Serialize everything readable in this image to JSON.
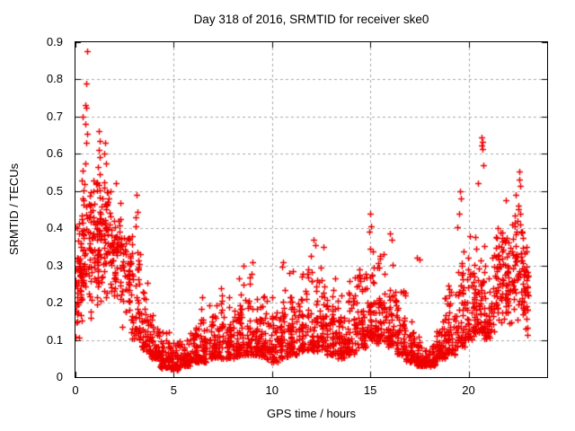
{
  "page": {
    "background": "#ffffff",
    "text_color": "#000000"
  },
  "chart_data": {
    "type": "scatter",
    "title": "Day 318 of 2016, SRMTID for receiver ske0",
    "xlabel": "GPS time / hours",
    "ylabel": "SRMTID / TECUs",
    "xlim": [
      0,
      24
    ],
    "ylim": [
      0,
      0.9
    ],
    "xticks": [
      0,
      5,
      10,
      15,
      20
    ],
    "yticks": [
      0,
      0.1,
      0.2,
      0.3,
      0.4,
      0.5,
      0.6,
      0.7,
      0.8,
      0.9
    ],
    "xtick_labels": [
      "0",
      "5",
      "10",
      "15",
      "20"
    ],
    "ytick_labels": [
      "0",
      "0.1",
      "0.2",
      "0.3",
      "0.4",
      "0.5",
      "0.6",
      "0.7",
      "0.8",
      "0.9"
    ],
    "grid": true,
    "grid_style": "dotted",
    "grid_color": "#a8a8a8",
    "frame_color": "#000000",
    "legend": "none",
    "marker": "plus",
    "marker_color": "#ee0000",
    "data_time_range_hours": [
      0,
      23.0
    ],
    "seed": 318,
    "bin_fields": [
      "t_start",
      "t_end",
      "y_min",
      "y_max",
      "count",
      "distribution"
    ],
    "density_bins": [
      [
        0.0,
        0.3,
        0.08,
        0.45,
        60,
        "mid"
      ],
      [
        0.3,
        0.8,
        0.15,
        0.6,
        65,
        "mid"
      ],
      [
        0.8,
        1.3,
        0.18,
        0.57,
        65,
        "mid"
      ],
      [
        1.3,
        1.8,
        0.17,
        0.55,
        60,
        "mid"
      ],
      [
        1.8,
        2.3,
        0.18,
        0.5,
        55,
        "mid"
      ],
      [
        2.3,
        2.8,
        0.13,
        0.42,
        50,
        "mid"
      ],
      [
        2.8,
        3.3,
        0.1,
        0.45,
        48,
        "low"
      ],
      [
        3.3,
        3.8,
        0.07,
        0.3,
        48,
        "low"
      ],
      [
        3.8,
        4.3,
        0.05,
        0.22,
        48,
        "low"
      ],
      [
        4.3,
        4.8,
        0.025,
        0.15,
        48,
        "low"
      ],
      [
        4.8,
        5.3,
        0.02,
        0.11,
        48,
        "low"
      ],
      [
        5.3,
        5.8,
        0.03,
        0.13,
        48,
        "low"
      ],
      [
        5.8,
        6.3,
        0.04,
        0.17,
        48,
        "low"
      ],
      [
        6.3,
        6.8,
        0.04,
        0.21,
        48,
        "low"
      ],
      [
        6.8,
        7.3,
        0.05,
        0.2,
        48,
        "low"
      ],
      [
        7.3,
        7.8,
        0.05,
        0.24,
        48,
        "low"
      ],
      [
        7.8,
        8.3,
        0.05,
        0.23,
        48,
        "low"
      ],
      [
        8.3,
        8.8,
        0.06,
        0.3,
        48,
        "low"
      ],
      [
        8.8,
        9.3,
        0.06,
        0.31,
        48,
        "low"
      ],
      [
        9.3,
        9.8,
        0.05,
        0.26,
        48,
        "low"
      ],
      [
        9.8,
        10.3,
        0.04,
        0.23,
        48,
        "low"
      ],
      [
        10.3,
        10.8,
        0.05,
        0.31,
        48,
        "low"
      ],
      [
        10.8,
        11.3,
        0.06,
        0.29,
        48,
        "low"
      ],
      [
        11.3,
        11.8,
        0.07,
        0.31,
        48,
        "low"
      ],
      [
        11.8,
        12.3,
        0.07,
        0.37,
        50,
        "low"
      ],
      [
        12.3,
        12.8,
        0.07,
        0.35,
        50,
        "low"
      ],
      [
        12.8,
        13.3,
        0.06,
        0.29,
        48,
        "low"
      ],
      [
        13.3,
        13.8,
        0.05,
        0.26,
        48,
        "low"
      ],
      [
        13.8,
        14.3,
        0.06,
        0.31,
        48,
        "low"
      ],
      [
        14.3,
        14.8,
        0.08,
        0.36,
        50,
        "low"
      ],
      [
        14.8,
        15.3,
        0.1,
        0.42,
        52,
        "low"
      ],
      [
        15.3,
        15.8,
        0.09,
        0.38,
        50,
        "low"
      ],
      [
        15.8,
        16.3,
        0.08,
        0.38,
        50,
        "low"
      ],
      [
        16.3,
        16.8,
        0.06,
        0.27,
        48,
        "low"
      ],
      [
        16.8,
        17.3,
        0.04,
        0.18,
        48,
        "low"
      ],
      [
        17.3,
        17.8,
        0.03,
        0.12,
        52,
        "low"
      ],
      [
        17.8,
        18.3,
        0.03,
        0.12,
        52,
        "low"
      ],
      [
        18.3,
        18.8,
        0.05,
        0.2,
        48,
        "low"
      ],
      [
        18.8,
        19.3,
        0.06,
        0.3,
        48,
        "low"
      ],
      [
        19.3,
        19.8,
        0.08,
        0.44,
        50,
        "low"
      ],
      [
        19.8,
        20.3,
        0.1,
        0.42,
        50,
        "low"
      ],
      [
        20.3,
        20.8,
        0.12,
        0.5,
        50,
        "low"
      ],
      [
        20.8,
        21.3,
        0.1,
        0.42,
        50,
        "low"
      ],
      [
        21.3,
        21.8,
        0.12,
        0.42,
        50,
        "mid"
      ],
      [
        21.8,
        22.3,
        0.1,
        0.46,
        50,
        "mid"
      ],
      [
        22.3,
        22.8,
        0.12,
        0.5,
        52,
        "mid"
      ],
      [
        22.8,
        23.05,
        0.1,
        0.38,
        32,
        "mid"
      ]
    ],
    "outlier_points": [
      [
        0.59,
        0.875
      ],
      [
        0.55,
        0.79
      ],
      [
        0.52,
        0.73
      ],
      [
        0.57,
        0.725
      ],
      [
        0.38,
        0.7
      ],
      [
        0.5,
        0.68
      ],
      [
        0.6,
        0.655
      ],
      [
        0.56,
        0.63
      ],
      [
        1.2,
        0.66
      ],
      [
        1.22,
        0.635
      ],
      [
        1.18,
        0.61
      ],
      [
        1.25,
        0.59
      ],
      [
        1.15,
        0.565
      ],
      [
        1.22,
        0.545
      ],
      [
        1.5,
        0.63
      ],
      [
        1.48,
        0.6
      ],
      [
        1.55,
        0.575
      ],
      [
        2.05,
        0.52
      ],
      [
        3.1,
        0.49
      ],
      [
        3.15,
        0.445
      ],
      [
        3.05,
        0.43
      ],
      [
        6.45,
        0.215
      ],
      [
        7.4,
        0.24
      ],
      [
        8.55,
        0.3
      ],
      [
        9.0,
        0.31
      ],
      [
        10.55,
        0.31
      ],
      [
        11.05,
        0.285
      ],
      [
        12.1,
        0.37
      ],
      [
        12.2,
        0.355
      ],
      [
        12.6,
        0.35
      ],
      [
        15.0,
        0.44
      ],
      [
        15.03,
        0.405
      ],
      [
        14.95,
        0.39
      ],
      [
        16.0,
        0.385
      ],
      [
        16.1,
        0.37
      ],
      [
        17.35,
        0.32
      ],
      [
        17.5,
        0.315
      ],
      [
        19.55,
        0.5
      ],
      [
        19.6,
        0.48
      ],
      [
        19.5,
        0.44
      ],
      [
        20.68,
        0.645
      ],
      [
        20.7,
        0.632
      ],
      [
        20.66,
        0.623
      ],
      [
        20.72,
        0.614
      ],
      [
        20.75,
        0.57
      ],
      [
        20.5,
        0.52
      ],
      [
        21.9,
        0.475
      ],
      [
        21.5,
        0.4
      ],
      [
        22.6,
        0.553
      ],
      [
        22.58,
        0.532
      ],
      [
        22.62,
        0.515
      ],
      [
        22.4,
        0.49
      ],
      [
        22.55,
        0.46
      ],
      [
        22.65,
        0.44
      ]
    ]
  }
}
